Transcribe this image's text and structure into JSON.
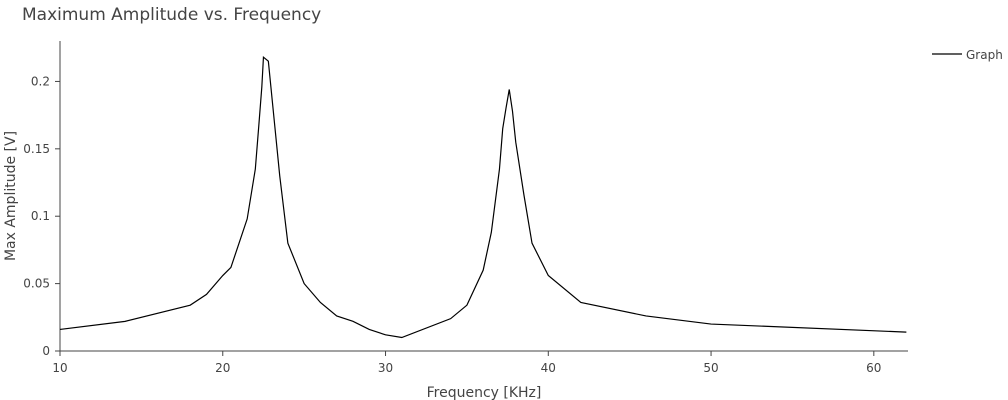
{
  "chart_data": {
    "type": "line",
    "title": "Maximum Amplitude vs. Frequency",
    "xlabel": "Frequency [KHz]",
    "ylabel": "Max Amplitude [V]",
    "xlim": [
      10,
      62.1
    ],
    "ylim": [
      0,
      0.23
    ],
    "xticks": [
      10,
      20,
      30,
      40,
      50,
      60
    ],
    "xtick_labels": [
      "10",
      "20",
      "30",
      "40",
      "50",
      "60"
    ],
    "yticks": [
      0,
      0.05,
      0.1,
      0.15,
      0.2
    ],
    "ytick_labels": [
      "0",
      "0.05",
      "0.1",
      "0.15",
      "0.2"
    ],
    "grid": false,
    "legend_position": "top-right",
    "series": [
      {
        "name": "Graph",
        "color": "#000000",
        "x": [
          10,
          14,
          18,
          19,
          20,
          20.5,
          21,
          21.5,
          22,
          22.2,
          22.4,
          22.5,
          22.8,
          23.5,
          24,
          25,
          26,
          27,
          28,
          29,
          30,
          31,
          34,
          35,
          36,
          36.5,
          37,
          37.2,
          37.4,
          37.6,
          37.8,
          38,
          38.5,
          39,
          40,
          42,
          46,
          50,
          62
        ],
        "values": [
          0.016,
          0.022,
          0.034,
          0.042,
          0.056,
          0.062,
          0.08,
          0.098,
          0.135,
          0.165,
          0.196,
          0.218,
          0.215,
          0.13,
          0.08,
          0.05,
          0.036,
          0.026,
          0.022,
          0.016,
          0.012,
          0.01,
          0.024,
          0.034,
          0.06,
          0.088,
          0.135,
          0.165,
          0.18,
          0.194,
          0.178,
          0.155,
          0.116,
          0.08,
          0.056,
          0.036,
          0.026,
          0.02,
          0.014
        ]
      }
    ]
  }
}
